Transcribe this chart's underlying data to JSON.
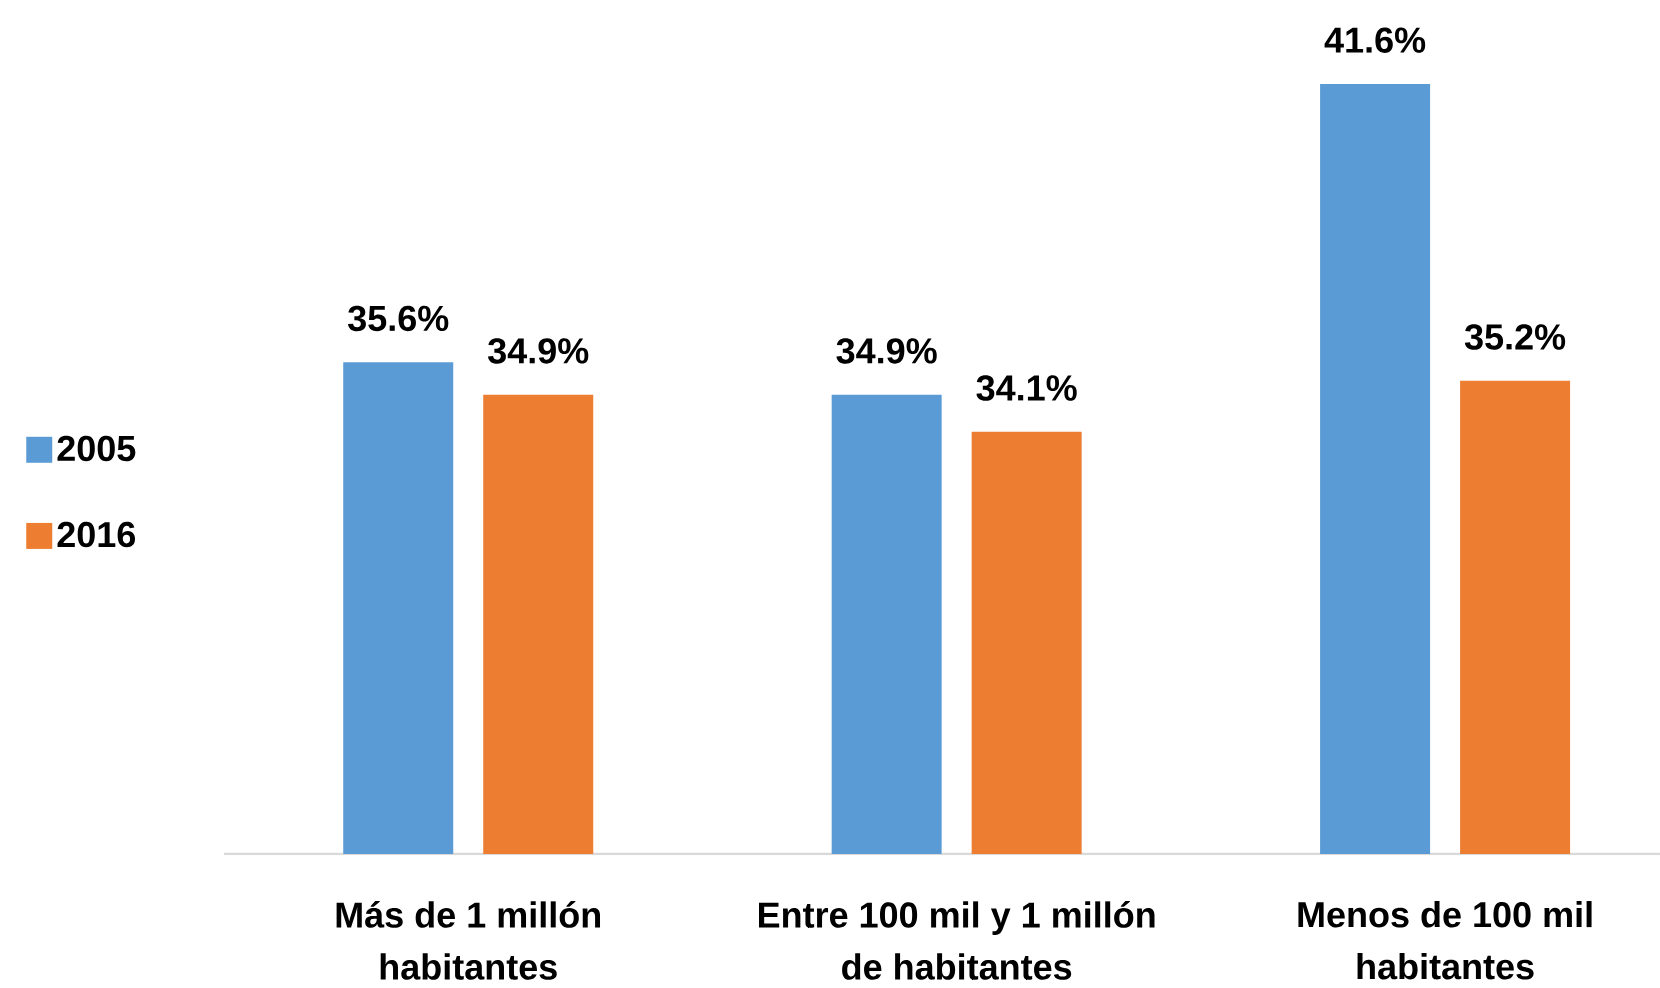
{
  "chart_data": {
    "type": "bar",
    "categories": [
      "Más de 1 millón habitantes",
      "Entre 100 mil y 1 millón de habitantes",
      "Menos de 100 mil habitantes"
    ],
    "series": [
      {
        "name": "2005",
        "color": "#5b9bd5",
        "values": [
          35.6,
          34.9,
          41.6
        ],
        "value_labels": [
          "35.6%",
          "34.9%",
          "41.6%"
        ]
      },
      {
        "name": "2016",
        "color": "#ed7d31",
        "values": [
          34.9,
          34.1,
          35.2
        ],
        "value_labels": [
          "34.9%",
          "34.1%",
          "35.2%"
        ]
      }
    ],
    "ylim": [
      25,
      41.6
    ],
    "tick_labels": "x",
    "legend": "left"
  }
}
